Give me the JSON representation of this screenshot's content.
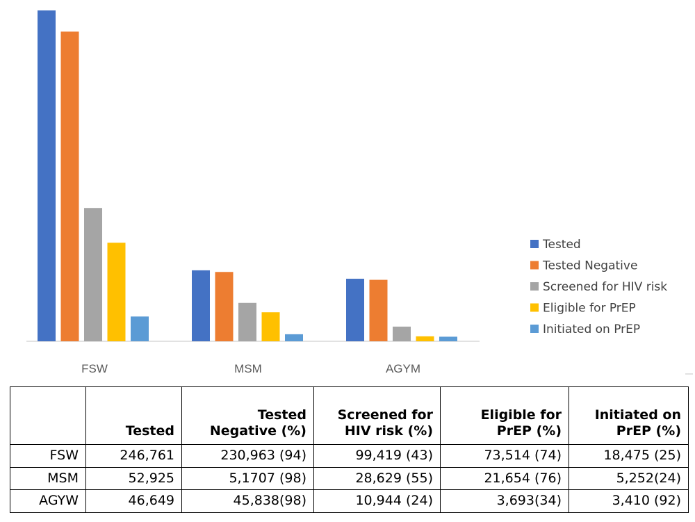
{
  "chart_data": {
    "type": "bar",
    "categories": [
      "FSW",
      "MSM",
      "AGYM"
    ],
    "series": [
      {
        "name": " Tested",
        "color": "#4472C4",
        "values": [
          246761,
          52925,
          46649
        ]
      },
      {
        "name": "Tested Negative",
        "color": "#ED7D31",
        "values": [
          230963,
          51707,
          45838
        ]
      },
      {
        "name": "Screened for HIV risk",
        "color": "#A5A5A5",
        "values": [
          99419,
          28629,
          10944
        ]
      },
      {
        "name": "Eligible for PrEP",
        "color": "#FFC000",
        "values": [
          73514,
          21654,
          3693
        ]
      },
      {
        "name": "Initiated on PrEP",
        "color": "#5B9BD5",
        "values": [
          18475,
          5252,
          3410
        ]
      }
    ],
    "ylim": [
      0,
      246761
    ],
    "grid": false,
    "legend_position": "right",
    "xlabel": "",
    "ylabel": ""
  },
  "table": {
    "headers": [
      "",
      "Tested",
      "Tested Negative (%)",
      "Screened for HIV risk (%)",
      "Eligible for PrEP (%)",
      "Initiated on PrEP (%)"
    ],
    "rows": [
      [
        "FSW",
        "246,761",
        "230,963 (94)",
        "99,419 (43)",
        "73,514 (74)",
        "18,475 (25)"
      ],
      [
        "MSM",
        "52,925",
        "5,1707 (98)",
        "28,629 (55)",
        "21,654 (76)",
        "5,252(24)"
      ],
      [
        "AGYW",
        "46,649",
        "45,838(98)",
        "10,944 (24)",
        "3,693(34)",
        "3,410 (92)"
      ]
    ]
  }
}
